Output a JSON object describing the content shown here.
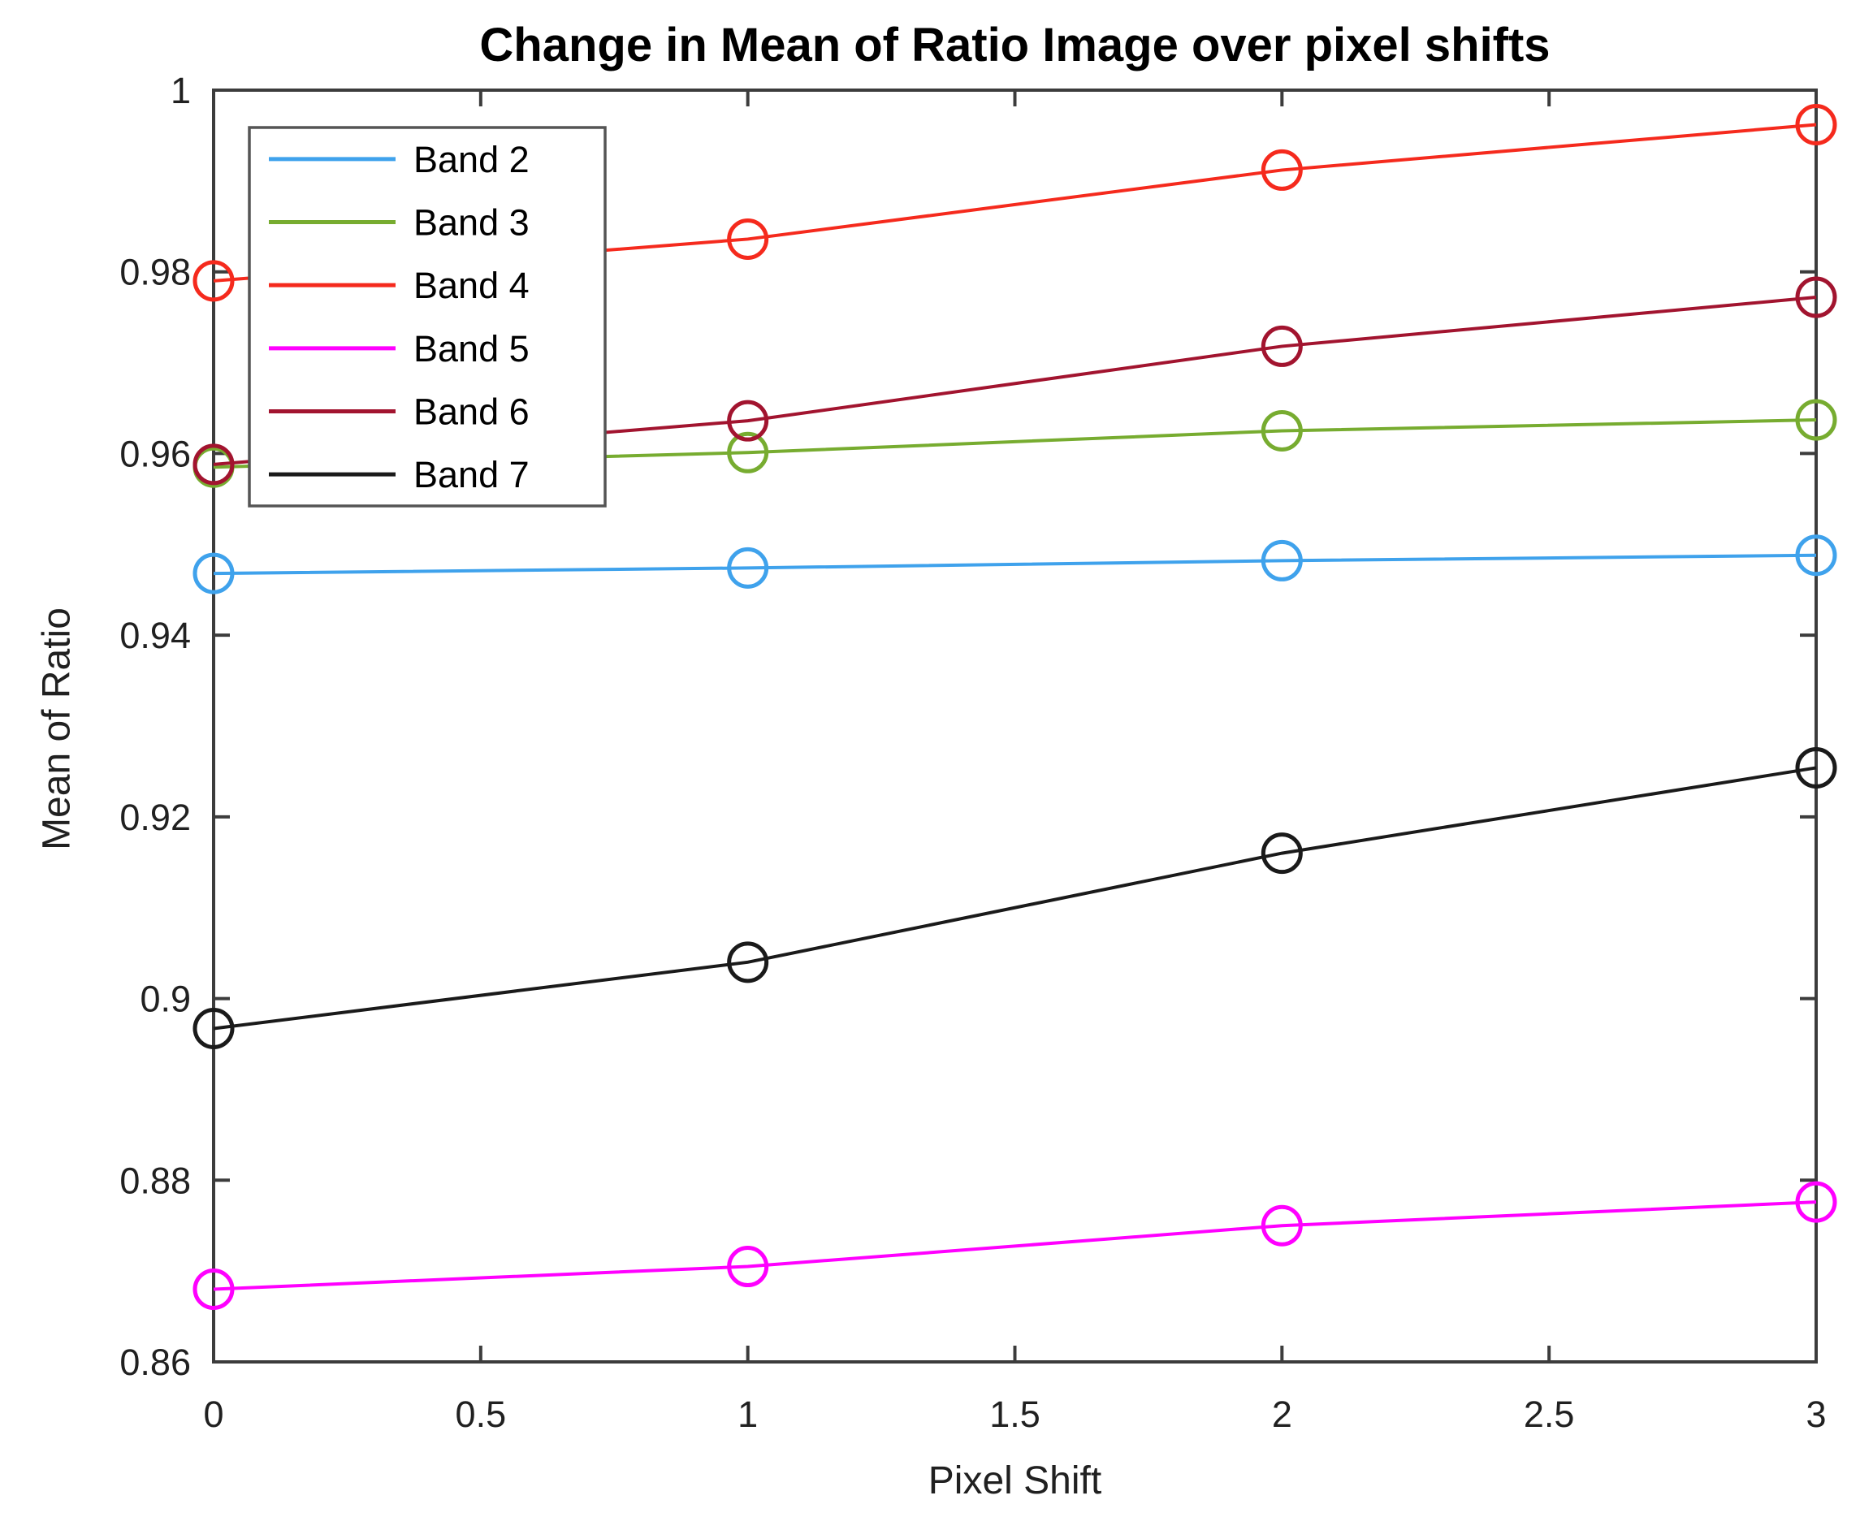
{
  "figure": {
    "background": "#ffffff"
  },
  "chart_data": {
    "type": "line",
    "title": "Change in Mean of Ratio Image over pixel shifts",
    "xlabel": "Pixel Shift",
    "ylabel": "Mean of Ratio",
    "xlim": [
      0,
      3
    ],
    "ylim": [
      0.86,
      1.0
    ],
    "grid": false,
    "legend_position": "northwest",
    "marker": "circle",
    "x": [
      0,
      1,
      2,
      3
    ],
    "x_ticks": [
      {
        "v": 0,
        "label": "0"
      },
      {
        "v": 0.5,
        "label": "0.5"
      },
      {
        "v": 1,
        "label": "1"
      },
      {
        "v": 1.5,
        "label": "1.5"
      },
      {
        "v": 2,
        "label": "2"
      },
      {
        "v": 2.5,
        "label": "2.5"
      },
      {
        "v": 3,
        "label": "3"
      }
    ],
    "y_ticks": [
      {
        "v": 0.86,
        "label": "0.86"
      },
      {
        "v": 0.88,
        "label": "0.88"
      },
      {
        "v": 0.9,
        "label": "0.9"
      },
      {
        "v": 0.92,
        "label": "0.92"
      },
      {
        "v": 0.94,
        "label": "0.94"
      },
      {
        "v": 0.96,
        "label": "0.96"
      },
      {
        "v": 0.98,
        "label": "0.98"
      },
      {
        "v": 1.0,
        "label": "1"
      }
    ],
    "series": [
      {
        "name": "Band 2",
        "color": "#3fa2ec",
        "values": [
          0.9468,
          0.9474,
          0.9482,
          0.9488
        ]
      },
      {
        "name": "Band 3",
        "color": "#77ac30",
        "values": [
          0.9585,
          0.9601,
          0.9625,
          0.9637
        ]
      },
      {
        "name": "Band 4",
        "color": "#f52a1d",
        "values": [
          0.979,
          0.9836,
          0.9912,
          0.9962
        ]
      },
      {
        "name": "Band 5",
        "color": "#ff00ff",
        "values": [
          0.868,
          0.8705,
          0.875,
          0.8776
        ]
      },
      {
        "name": "Band 6",
        "color": "#a2142f",
        "values": [
          0.9588,
          0.9636,
          0.9718,
          0.9772
        ]
      },
      {
        "name": "Band 7",
        "color": "#1a1a1a",
        "values": [
          0.8967,
          0.904,
          0.916,
          0.9254
        ]
      }
    ]
  },
  "style": {
    "axis_color": "#3c3c3c",
    "tick_label_color": "#202020",
    "legend_border_color": "#555555",
    "legend_background": "#ffffff"
  }
}
